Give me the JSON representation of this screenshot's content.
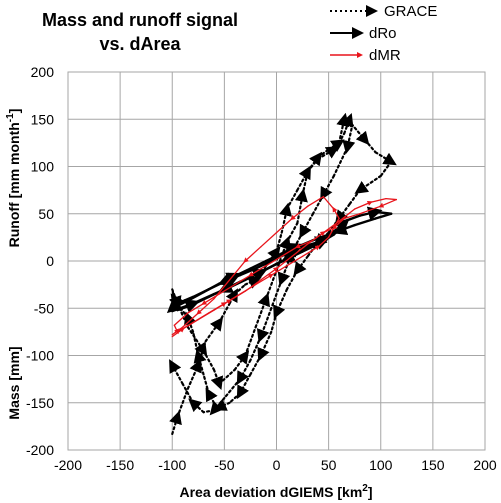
{
  "chart_data": {
    "type": "line",
    "title_line1": "Mass and runoff signal",
    "title_line2": "vs. dArea",
    "xlabel_main": "Area  deviation dGIEMS  [km",
    "xlabel_sup": "2",
    "xlabel_end": "]",
    "ylabel_mass": "Mass  [mm]",
    "ylabel_runoff_main": "Runoff  [mm month",
    "ylabel_runoff_sup": "-1",
    "ylabel_runoff_end": "]",
    "xlim": [
      -200,
      200
    ],
    "ylim": [
      -200,
      200
    ],
    "xticks": [
      "-200",
      "-150",
      "-100",
      "-50",
      "0",
      "50",
      "100",
      "150",
      "200"
    ],
    "yticks": [
      "-200",
      "-150",
      "-100",
      "-50",
      "0",
      "50",
      "100",
      "150",
      "200"
    ],
    "grid": true,
    "legend_position": "top-right",
    "colors": {
      "grace": "#000000",
      "dro": "#000000",
      "dmr": "#e8141b",
      "grid": "#a6a6a6"
    },
    "series": [
      {
        "name": "GRACE",
        "style": "dotted",
        "x": [
          -100,
          -95,
          -85,
          -75,
          -68,
          -55,
          -45,
          -40,
          -30,
          -20,
          -10,
          0,
          5,
          10,
          20,
          30,
          40,
          55,
          60,
          65,
          72,
          85,
          95,
          110,
          100,
          80,
          70,
          60,
          50,
          40,
          30,
          20,
          10,
          0,
          -5,
          -15,
          -25,
          -35,
          -45,
          -55,
          -60,
          -65,
          -70,
          -75,
          -80,
          -85,
          -92,
          -98,
          -100,
          -95,
          -85,
          -70,
          -60,
          -55,
          -40,
          -30,
          -20,
          -10,
          0,
          10,
          20,
          25,
          30,
          40,
          50,
          60,
          65,
          70,
          72,
          68,
          55,
          45,
          35,
          25,
          15,
          5,
          -5,
          -15,
          -25,
          -35,
          -50,
          -60,
          -70,
          -80,
          -90,
          -100
        ],
        "y": [
          -183,
          -165,
          -135,
          -110,
          -85,
          -65,
          -45,
          -35,
          -25,
          -20,
          -5,
          10,
          30,
          55,
          75,
          95,
          108,
          118,
          125,
          150,
          145,
          128,
          115,
          105,
          90,
          75,
          60,
          45,
          30,
          20,
          5,
          -10,
          -30,
          -55,
          -75,
          -100,
          -120,
          -140,
          -150,
          -155,
          -150,
          -140,
          -120,
          -100,
          -75,
          -60,
          -50,
          -40,
          -30,
          -45,
          -70,
          -95,
          -115,
          -130,
          -115,
          -100,
          -70,
          -40,
          -10,
          20,
          40,
          70,
          95,
          110,
          118,
          125,
          135,
          150,
          140,
          120,
          90,
          70,
          50,
          30,
          10,
          -20,
          -50,
          -80,
          -105,
          -125,
          -145,
          -158,
          -160,
          -150,
          -130,
          -110
        ]
      },
      {
        "name": "dRo",
        "style": "solid",
        "x": [
          -100,
          -80,
          -60,
          -45,
          -30,
          -15,
          0,
          15,
          30,
          45,
          55,
          65,
          80,
          95,
          110,
          95,
          75,
          60,
          50,
          40,
          25,
          10,
          -5,
          -20,
          -35,
          -50,
          -65,
          -80,
          -95,
          -100,
          -85,
          -70,
          -55,
          -40,
          -25,
          -10,
          5,
          20,
          35,
          50,
          60,
          65,
          55,
          40,
          25,
          10,
          -5,
          -20,
          -35,
          -50,
          -65,
          -80,
          -95
        ],
        "y": [
          -53,
          -45,
          -35,
          -28,
          -20,
          -12,
          -3,
          5,
          15,
          22,
          30,
          42,
          48,
          52,
          50,
          45,
          38,
          32,
          25,
          20,
          15,
          8,
          0,
          -8,
          -15,
          -22,
          -30,
          -38,
          -45,
          -50,
          -42,
          -33,
          -24,
          -16,
          -8,
          0,
          8,
          15,
          22,
          28,
          35,
          40,
          28,
          18,
          10,
          2,
          -6,
          -14,
          -22,
          -30,
          -38,
          -46,
          -52
        ]
      },
      {
        "name": "dMR",
        "style": "solid",
        "x": [
          -100,
          -90,
          -75,
          -60,
          -45,
          -30,
          -15,
          0,
          15,
          30,
          45,
          60,
          75,
          90,
          105,
          115,
          100,
          80,
          65,
          55,
          45,
          35,
          20,
          5,
          -10,
          -25,
          -40,
          -55,
          -70,
          -85,
          -98,
          -95,
          -80,
          -65,
          -50,
          -35,
          -20,
          -5,
          10,
          25,
          40,
          50,
          60,
          55,
          45,
          30,
          15,
          0,
          -15,
          -30,
          -45,
          -60,
          -75,
          -90,
          -100
        ],
        "y": [
          -80,
          -72,
          -62,
          -52,
          -42,
          -32,
          -20,
          -8,
          5,
          18,
          30,
          42,
          55,
          62,
          66,
          65,
          58,
          50,
          45,
          35,
          30,
          22,
          15,
          5,
          -5,
          -15,
          -25,
          -35,
          -45,
          -55,
          -68,
          -75,
          -65,
          -55,
          -45,
          -35,
          -25,
          -15,
          -5,
          5,
          15,
          25,
          45,
          55,
          68,
          58,
          45,
          30,
          15,
          0,
          -20,
          -40,
          -55,
          -70,
          -78
        ]
      }
    ]
  }
}
